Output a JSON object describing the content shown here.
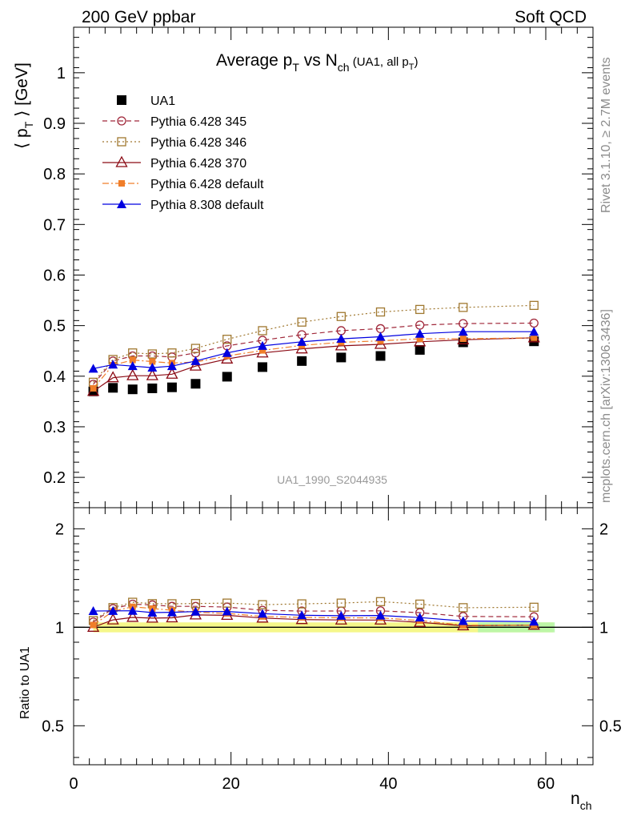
{
  "header": {
    "left": "200 GeV ppbar",
    "right": "Soft QCD"
  },
  "side_labels": {
    "rivet": "Rivet 3.1.10, ≥ 2.7M events",
    "mcplots": "mcplots.cern.ch [arXiv:1306.3436]"
  },
  "chart_data": {
    "type": "scatter",
    "title": {
      "main": "Average p",
      "main_sub": "T",
      "mid": " vs N",
      "mid_sub": "ch",
      "small": " (UA1, all p",
      "small_sub": "T",
      "small_end": ")"
    },
    "analysis_id": "UA1_1990_S2044935",
    "ylabel": {
      "open": "⟨ p",
      "sub": "T",
      "close": " ⟩ [GeV]"
    },
    "xlabel": {
      "main": "n",
      "sub": "ch"
    },
    "ratio_ylabel": "Ratio to UA1",
    "xlim": [
      0,
      66
    ],
    "ylim": [
      0.14,
      1.09
    ],
    "ratio_ylim": [
      0.38,
      2.32
    ],
    "xticks": [
      0,
      20,
      40,
      60
    ],
    "yticks": [
      0.2,
      0.3,
      0.4,
      0.5,
      0.6,
      0.7,
      0.8,
      0.9,
      1
    ],
    "ytick_labels": [
      "0.2",
      "0.3",
      "0.4",
      "0.5",
      "0.6",
      "0.7",
      "0.8",
      "0.9",
      "1"
    ],
    "ratio_yticks": [
      0.5,
      1,
      2
    ],
    "ratio_ytick_labels": [
      "0.5",
      "1",
      "2"
    ],
    "x": [
      2.5,
      5,
      7.5,
      10,
      12.5,
      15.5,
      19.5,
      24,
      29,
      34,
      39,
      44,
      49.5,
      58.5
    ],
    "series": [
      {
        "name": "UA1",
        "color": "#000000",
        "marker": "filled-square",
        "line": "none",
        "values": [
          0.37,
          0.377,
          0.374,
          0.376,
          0.378,
          0.385,
          0.399,
          0.418,
          0.43,
          0.437,
          0.44,
          0.452,
          0.467,
          0.469
        ]
      },
      {
        "name": "Pythia 6.428 345",
        "color": "#a0283a",
        "marker": "open-circle",
        "line": "dashed",
        "values": [
          0.384,
          0.43,
          0.44,
          0.44,
          0.438,
          0.446,
          0.46,
          0.471,
          0.482,
          0.49,
          0.494,
          0.501,
          0.504,
          0.505
        ]
      },
      {
        "name": "Pythia 6.428 346",
        "color": "#a07830",
        "marker": "open-square",
        "line": "dotted",
        "values": [
          0.388,
          0.433,
          0.446,
          0.444,
          0.446,
          0.455,
          0.473,
          0.49,
          0.507,
          0.518,
          0.527,
          0.532,
          0.536,
          0.54
        ]
      },
      {
        "name": "Pythia 6.428 370",
        "color": "#8b0a14",
        "marker": "open-triangle",
        "line": "solid",
        "values": [
          0.37,
          0.397,
          0.401,
          0.401,
          0.404,
          0.42,
          0.434,
          0.446,
          0.454,
          0.46,
          0.463,
          0.468,
          0.472,
          0.476
        ]
      },
      {
        "name": "Pythia 6.428 default",
        "color": "#f07e2a",
        "marker": "filled-small-square",
        "line": "dashdot",
        "values": [
          0.376,
          0.422,
          0.432,
          0.429,
          0.426,
          0.428,
          0.44,
          0.451,
          0.461,
          0.467,
          0.47,
          0.474,
          0.474,
          0.476
        ]
      },
      {
        "name": "Pythia 8.308 default",
        "color": "#0000e0",
        "marker": "filled-triangle",
        "line": "solid",
        "values": [
          0.415,
          0.423,
          0.42,
          0.417,
          0.42,
          0.43,
          0.446,
          0.46,
          0.468,
          0.474,
          0.478,
          0.484,
          0.488,
          0.488
        ]
      }
    ]
  }
}
